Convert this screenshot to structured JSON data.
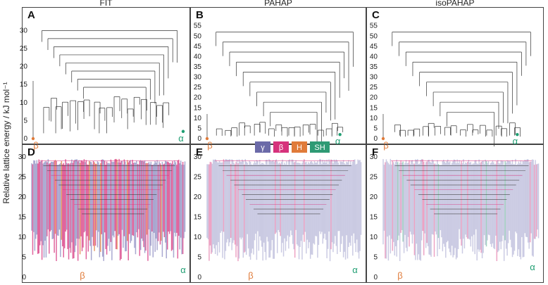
{
  "figure": {
    "ylabel": "Relative lattice energy / kJ mol⁻¹",
    "panel_titles": [
      "FIT",
      "PAHAP",
      "isoPAHAP"
    ],
    "panel_letters": [
      "A",
      "B",
      "C",
      "D",
      "E",
      "F"
    ],
    "legend": [
      {
        "label": "γ",
        "color": "#6b6aa8"
      },
      {
        "label": "β",
        "color": "#d6327c"
      },
      {
        "label": "H",
        "color": "#e07b3a"
      },
      {
        "label": "SH",
        "color": "#2e9a74"
      }
    ],
    "colors": {
      "alpha": "#1f9e72",
      "beta": "#e07b3a",
      "tree": "#333333",
      "gamma_fill": "#8c8bc0",
      "beta_fill": "#d6327c",
      "h_fill": "#e07b3a",
      "sh_fill": "#2e9a74",
      "frame": "#444444"
    }
  },
  "chart_data": [
    {
      "panel": "A",
      "title": "FIT",
      "type": "disconnectivity-graph",
      "ylabel": "Relative lattice energy / kJ mol⁻¹",
      "ylim": [
        0,
        33
      ],
      "yticks": [
        0,
        5,
        10,
        15,
        20,
        25,
        30
      ],
      "markers": [
        {
          "label": "β",
          "energy": 0,
          "color": "#e07b3a"
        },
        {
          "label": "α",
          "energy": 2,
          "color": "#1f9e72"
        }
      ]
    },
    {
      "panel": "B",
      "title": "PAHAP",
      "type": "disconnectivity-graph",
      "ylim": [
        0,
        58
      ],
      "yticks": [
        0,
        5,
        10,
        15,
        20,
        25,
        30,
        35,
        40,
        45,
        50,
        55
      ],
      "markers": [
        {
          "label": "β",
          "energy": 0,
          "color": "#e07b3a"
        },
        {
          "label": "α",
          "energy": 2,
          "color": "#1f9e72"
        }
      ]
    },
    {
      "panel": "C",
      "title": "isoPAHAP",
      "type": "disconnectivity-graph",
      "ylim": [
        0,
        58
      ],
      "yticks": [
        0,
        5,
        10,
        15,
        20,
        25,
        30,
        35,
        40,
        45,
        50,
        55
      ],
      "markers": [
        {
          "label": "β",
          "energy": 0,
          "color": "#e07b3a"
        },
        {
          "label": "α",
          "energy": 2,
          "color": "#1f9e72"
        }
      ]
    },
    {
      "panel": "D",
      "type": "disconnectivity-graph",
      "ylim": [
        0,
        30
      ],
      "yticks": [
        0,
        5,
        10,
        15,
        20,
        25,
        30
      ],
      "markers": [
        {
          "label": "β",
          "color": "#e07b3a"
        },
        {
          "label": "α",
          "color": "#1f9e72"
        }
      ]
    },
    {
      "panel": "E",
      "type": "disconnectivity-graph",
      "ylim": [
        0,
        30
      ],
      "yticks": [
        0,
        5,
        10,
        15,
        20,
        25,
        30
      ],
      "markers": [
        {
          "label": "β",
          "color": "#e07b3a"
        },
        {
          "label": "α",
          "color": "#1f9e72"
        }
      ]
    },
    {
      "panel": "F",
      "type": "disconnectivity-graph",
      "ylim": [
        0,
        30
      ],
      "yticks": [
        0,
        5,
        10,
        15,
        20,
        25,
        30
      ],
      "markers": [
        {
          "label": "β",
          "color": "#e07b3a"
        },
        {
          "label": "α",
          "color": "#1f9e72"
        }
      ]
    }
  ]
}
